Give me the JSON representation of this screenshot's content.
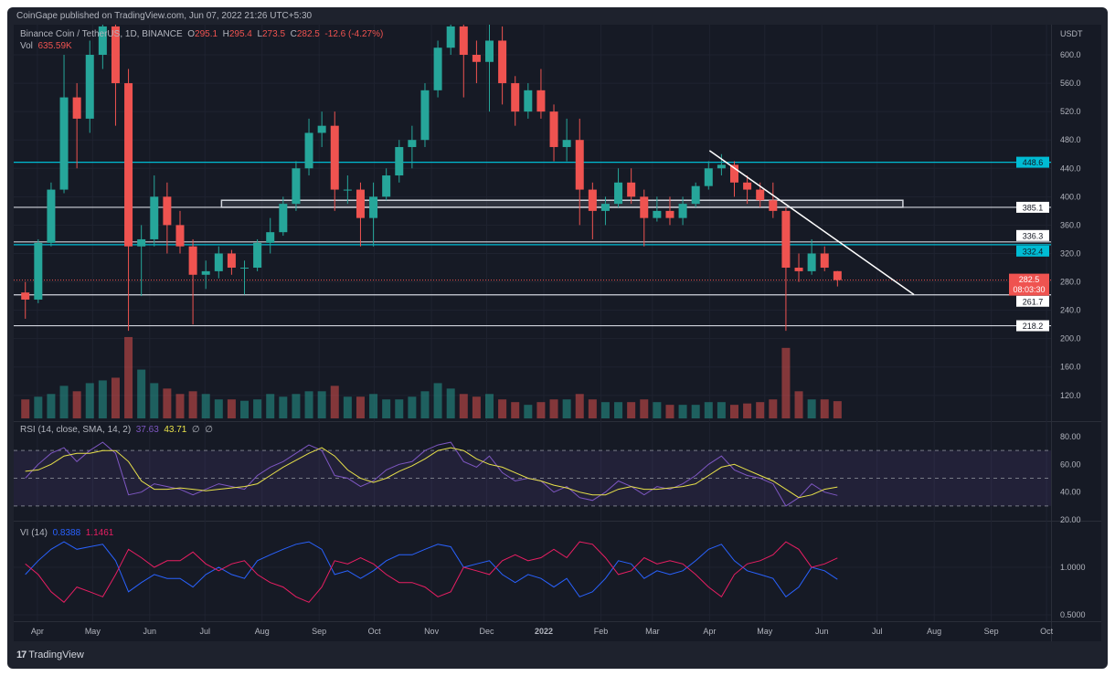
{
  "header": {
    "published": "CoinGape published on TradingView.com, Jun 07, 2022 21:26 UTC+5:30"
  },
  "legend": {
    "symbol": "Binance Coin / TetherUS, 1D, BINANCE",
    "o_label": "O",
    "o": "295.1",
    "h_label": "H",
    "h": "295.4",
    "l_label": "L",
    "l": "273.5",
    "c_label": "C",
    "c": "282.5",
    "change": "-12.6 (-4.27%)",
    "vol_label": "Vol",
    "vol": "635.59K"
  },
  "rsi_legend": {
    "label": "RSI (14, close, SMA, 14, 2)",
    "rsi": "37.63",
    "sma": "43.71",
    "na1": "∅",
    "na2": "∅"
  },
  "vi_legend": {
    "label": "VI (14)",
    "plus": "0.8388",
    "minus": "1.1461"
  },
  "footer": {
    "logo_mark": "17",
    "brand": "TradingView"
  },
  "colors": {
    "up": "#26a69a",
    "down": "#ef5350",
    "cyan": "#00bcd4",
    "rsi": "#7e57c2",
    "rsi_sma": "#e8e14a",
    "vi_plus": "#2962ff",
    "vi_minus": "#e91e63",
    "background": "#161a25"
  },
  "chart_data": {
    "type": "candlestick",
    "title": "Binance Coin / TetherUS, 1D, BINANCE",
    "currency": "USDT",
    "price_ticks": [
      "600.0",
      "560.0",
      "520.0",
      "480.0",
      "440.0",
      "400.0",
      "360.0",
      "320.0",
      "280.0",
      "240.0",
      "200.0",
      "160.0",
      "120.0"
    ],
    "rsi_ticks": [
      "80.00",
      "60.00",
      "40.00",
      "20.00"
    ],
    "vi_ticks": [
      "1.0000",
      "0.5000"
    ],
    "x_ticks": [
      {
        "date": "2021-04-01",
        "label": "Apr"
      },
      {
        "date": "2021-05-01",
        "label": "May"
      },
      {
        "date": "2021-06-01",
        "label": "Jun"
      },
      {
        "date": "2021-07-01",
        "label": "Jul"
      },
      {
        "date": "2021-08-01",
        "label": "Aug"
      },
      {
        "date": "2021-09-01",
        "label": "Sep"
      },
      {
        "date": "2021-10-01",
        "label": "Oct"
      },
      {
        "date": "2021-11-01",
        "label": "Nov"
      },
      {
        "date": "2021-12-01",
        "label": "Dec"
      },
      {
        "date": "2022-01-01",
        "label": "2022"
      },
      {
        "date": "2022-02-01",
        "label": "Feb"
      },
      {
        "date": "2022-03-01",
        "label": "Mar"
      },
      {
        "date": "2022-04-01",
        "label": "Apr"
      },
      {
        "date": "2022-05-01",
        "label": "May"
      },
      {
        "date": "2022-06-01",
        "label": "Jun"
      },
      {
        "date": "2022-07-01",
        "label": "Jul"
      },
      {
        "date": "2022-08-01",
        "label": "Aug"
      },
      {
        "date": "2022-09-01",
        "label": "Sep"
      },
      {
        "date": "2022-10-01",
        "label": "Oct"
      }
    ],
    "dates": [
      "2021-03-22",
      "2021-03-29",
      "2021-04-05",
      "2021-04-12",
      "2021-04-19",
      "2021-04-26",
      "2021-05-03",
      "2021-05-10",
      "2021-05-17",
      "2021-05-24",
      "2021-05-31",
      "2021-06-07",
      "2021-06-14",
      "2021-06-21",
      "2021-06-28",
      "2021-07-05",
      "2021-07-12",
      "2021-07-19",
      "2021-07-26",
      "2021-08-02",
      "2021-08-09",
      "2021-08-16",
      "2021-08-23",
      "2021-08-30",
      "2021-09-06",
      "2021-09-13",
      "2021-09-20",
      "2021-09-27",
      "2021-10-04",
      "2021-10-11",
      "2021-10-18",
      "2021-10-25",
      "2021-11-01",
      "2021-11-08",
      "2021-11-15",
      "2021-11-22",
      "2021-11-29",
      "2021-12-06",
      "2021-12-13",
      "2021-12-20",
      "2021-12-27",
      "2022-01-03",
      "2022-01-10",
      "2022-01-17",
      "2022-01-24",
      "2022-01-31",
      "2022-02-07",
      "2022-02-14",
      "2022-02-21",
      "2022-02-28",
      "2022-03-07",
      "2022-03-14",
      "2022-03-21",
      "2022-03-28",
      "2022-04-04",
      "2022-04-11",
      "2022-04-18",
      "2022-04-25",
      "2022-05-02",
      "2022-05-09",
      "2022-05-16",
      "2022-05-23",
      "2022-05-30",
      "2022-06-06"
    ],
    "ohlc": [
      [
        265,
        280,
        228,
        255
      ],
      [
        255,
        340,
        250,
        335
      ],
      [
        335,
        420,
        330,
        410
      ],
      [
        410,
        600,
        405,
        540
      ],
      [
        540,
        560,
        440,
        510
      ],
      [
        510,
        620,
        490,
        600
      ],
      [
        600,
        690,
        580,
        640
      ],
      [
        640,
        680,
        500,
        560
      ],
      [
        560,
        580,
        211,
        330
      ],
      [
        330,
        360,
        260,
        340
      ],
      [
        340,
        430,
        330,
        400
      ],
      [
        400,
        420,
        320,
        360
      ],
      [
        360,
        380,
        320,
        330
      ],
      [
        330,
        340,
        220,
        290
      ],
      [
        290,
        310,
        270,
        295
      ],
      [
        295,
        330,
        285,
        320
      ],
      [
        320,
        325,
        290,
        300
      ],
      [
        300,
        310,
        262,
        300
      ],
      [
        300,
        340,
        295,
        335
      ],
      [
        335,
        370,
        320,
        350
      ],
      [
        350,
        400,
        345,
        390
      ],
      [
        390,
        450,
        380,
        440
      ],
      [
        440,
        510,
        430,
        490
      ],
      [
        490,
        520,
        470,
        500
      ],
      [
        500,
        520,
        380,
        410
      ],
      [
        410,
        430,
        390,
        410
      ],
      [
        410,
        420,
        330,
        370
      ],
      [
        370,
        420,
        330,
        400
      ],
      [
        400,
        440,
        395,
        430
      ],
      [
        430,
        480,
        420,
        470
      ],
      [
        470,
        500,
        440,
        480
      ],
      [
        480,
        560,
        470,
        550
      ],
      [
        550,
        620,
        540,
        610
      ],
      [
        610,
        670,
        600,
        640
      ],
      [
        640,
        660,
        540,
        600
      ],
      [
        600,
        620,
        560,
        590
      ],
      [
        590,
        670,
        520,
        620
      ],
      [
        620,
        640,
        530,
        560
      ],
      [
        560,
        570,
        500,
        520
      ],
      [
        520,
        560,
        510,
        550
      ],
      [
        550,
        580,
        510,
        520
      ],
      [
        520,
        530,
        450,
        470
      ],
      [
        470,
        510,
        450,
        480
      ],
      [
        480,
        510,
        360,
        410
      ],
      [
        410,
        420,
        340,
        380
      ],
      [
        380,
        400,
        360,
        390
      ],
      [
        390,
        440,
        385,
        420
      ],
      [
        420,
        440,
        390,
        400
      ],
      [
        400,
        410,
        330,
        370
      ],
      [
        370,
        400,
        365,
        380
      ],
      [
        380,
        400,
        360,
        370
      ],
      [
        370,
        400,
        360,
        390
      ],
      [
        390,
        420,
        385,
        415
      ],
      [
        415,
        450,
        410,
        440
      ],
      [
        440,
        460,
        430,
        445
      ],
      [
        445,
        450,
        400,
        420
      ],
      [
        420,
        430,
        390,
        410
      ],
      [
        410,
        420,
        385,
        395
      ],
      [
        395,
        420,
        370,
        380
      ],
      [
        380,
        385,
        211,
        300
      ],
      [
        300,
        320,
        280,
        295
      ],
      [
        295,
        340,
        290,
        320
      ],
      [
        320,
        330,
        295,
        300
      ],
      [
        295.1,
        295.4,
        273.5,
        282.5
      ]
    ],
    "volume_k": [
      700,
      800,
      900,
      1200,
      1000,
      1300,
      1400,
      1500,
      3000,
      1800,
      1300,
      1100,
      900,
      1000,
      900,
      700,
      700,
      650,
      700,
      900,
      800,
      900,
      1000,
      1000,
      1200,
      800,
      800,
      900,
      700,
      700,
      800,
      1000,
      1300,
      1100,
      900,
      800,
      900,
      700,
      600,
      500,
      600,
      700,
      700,
      900,
      700,
      600,
      600,
      600,
      700,
      600,
      500,
      500,
      500,
      600,
      600,
      500,
      550,
      600,
      700,
      2600,
      1000,
      700,
      700,
      635.59
    ],
    "levels": [
      {
        "price": 448.6,
        "label": "448.6",
        "color": "#00bcd4"
      },
      {
        "price": 385.1,
        "label": "385.1",
        "color": "#d1d4dc"
      },
      {
        "price": 336.3,
        "label": "336.3",
        "color": "#d1d4dc"
      },
      {
        "price": 332.4,
        "label": "332.4",
        "color": "#00bcd4"
      },
      {
        "price": 261.7,
        "label": "261.7",
        "color": "#d1d4dc"
      },
      {
        "price": 218.2,
        "label": "218.2",
        "color": "#d1d4dc"
      }
    ],
    "last_price": {
      "price": 282.5,
      "label": "282.5",
      "countdown": "08:03:30"
    },
    "zone": {
      "from": "2021-07-10",
      "to": "2022-07-15",
      "low": 385.1,
      "high": 395
    },
    "trendline": {
      "from": {
        "date": "2022-04-01",
        "price": 465
      },
      "to": {
        "date": "2022-07-21",
        "price": 262
      }
    },
    "rsi": [
      50,
      60,
      68,
      72,
      62,
      70,
      76,
      68,
      38,
      40,
      46,
      44,
      42,
      38,
      42,
      46,
      44,
      42,
      52,
      58,
      62,
      68,
      74,
      70,
      52,
      50,
      44,
      48,
      56,
      60,
      62,
      70,
      74,
      76,
      62,
      58,
      66,
      54,
      48,
      50,
      48,
      40,
      44,
      36,
      34,
      40,
      48,
      44,
      38,
      44,
      42,
      46,
      52,
      60,
      66,
      56,
      52,
      50,
      46,
      30,
      36,
      46,
      40,
      37.63
    ],
    "rsi_sma": [
      55,
      56,
      60,
      66,
      68,
      68,
      70,
      70,
      62,
      48,
      42,
      42,
      43,
      42,
      41,
      42,
      43,
      44,
      46,
      52,
      58,
      63,
      68,
      72,
      66,
      56,
      50,
      47,
      50,
      55,
      59,
      64,
      70,
      72,
      70,
      64,
      60,
      58,
      54,
      50,
      48,
      45,
      43,
      40,
      38,
      38,
      42,
      44,
      42,
      42,
      43,
      44,
      46,
      52,
      58,
      60,
      56,
      52,
      48,
      42,
      36,
      38,
      42,
      43.71
    ],
    "rsi_band": [
      30,
      70
    ],
    "vi_plus": [
      0.9,
      1.1,
      1.3,
      1.45,
      1.3,
      1.35,
      1.4,
      1.1,
      0.7,
      0.8,
      0.9,
      0.85,
      0.85,
      0.75,
      0.9,
      1.0,
      0.9,
      0.85,
      1.1,
      1.2,
      1.3,
      1.4,
      1.45,
      1.3,
      0.9,
      0.95,
      0.85,
      0.95,
      1.1,
      1.2,
      1.2,
      1.3,
      1.4,
      1.35,
      1.0,
      1.05,
      1.1,
      0.9,
      0.8,
      0.9,
      0.85,
      0.75,
      0.85,
      0.65,
      0.7,
      0.85,
      1.1,
      1.05,
      0.85,
      0.95,
      0.9,
      0.95,
      1.1,
      1.3,
      1.4,
      1.1,
      0.95,
      0.9,
      0.85,
      0.65,
      0.75,
      1.0,
      0.95,
      0.8388
    ],
    "vi_minus": [
      1.05,
      0.9,
      0.7,
      0.6,
      0.75,
      0.7,
      0.65,
      0.9,
      1.3,
      1.15,
      1.0,
      1.1,
      1.1,
      1.25,
      1.05,
      0.95,
      1.05,
      1.1,
      0.9,
      0.8,
      0.75,
      0.65,
      0.6,
      0.75,
      1.1,
      1.05,
      1.15,
      1.05,
      0.9,
      0.8,
      0.8,
      0.75,
      0.65,
      0.7,
      1.0,
      0.95,
      0.9,
      1.1,
      1.2,
      1.1,
      1.15,
      1.3,
      1.15,
      1.45,
      1.4,
      1.15,
      0.9,
      0.95,
      1.15,
      1.05,
      1.1,
      1.05,
      0.9,
      0.75,
      0.65,
      0.9,
      1.05,
      1.1,
      1.2,
      1.45,
      1.3,
      1.0,
      1.05,
      1.1461
    ],
    "vi_scale": "log"
  }
}
